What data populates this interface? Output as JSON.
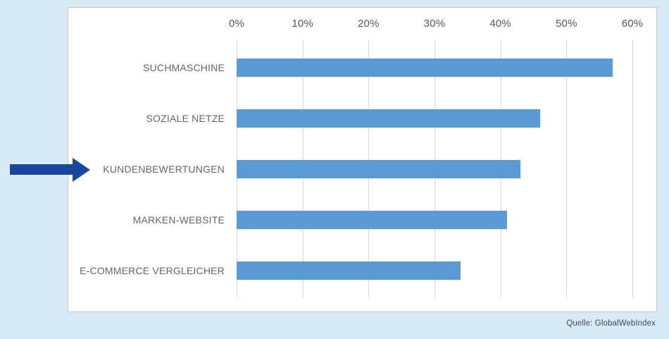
{
  "source": "Quelle: GlobalWebIndex",
  "colors": {
    "page_bg": "#d9eaf7",
    "panel_bg": "#ffffff",
    "panel_border": "#c6c6c6",
    "bar": "#5b9bd5",
    "arrow": "#17479e",
    "grid": "#d9d9d9",
    "tick_text": "#595959",
    "label_text": "#666666",
    "source_text": "#3e4a5c"
  },
  "chart_data": {
    "type": "bar",
    "orientation": "horizontal",
    "title": "",
    "xlabel": "",
    "ylabel": "",
    "unit": "%",
    "categories": [
      "SUCHMASCHINE",
      "SOZIALE NETZE",
      "KUNDENBEWERTUNGEN",
      "MARKEN-WEBSITE",
      "E-COMMERCE VERGLEICHER"
    ],
    "values": [
      57,
      46,
      43,
      41,
      34
    ],
    "xlim": [
      0,
      60
    ],
    "xtick_values": [
      0,
      10,
      20,
      30,
      40,
      50,
      60
    ],
    "xtick_labels": [
      "0%",
      "10%",
      "20%",
      "30%",
      "40%",
      "50%",
      "60%"
    ],
    "axis_position": "top",
    "grid": "vertical",
    "legend": "none",
    "annotation": {
      "type": "arrow",
      "direction": "right",
      "target_category": "KUNDENBEWERTUNGEN"
    }
  }
}
